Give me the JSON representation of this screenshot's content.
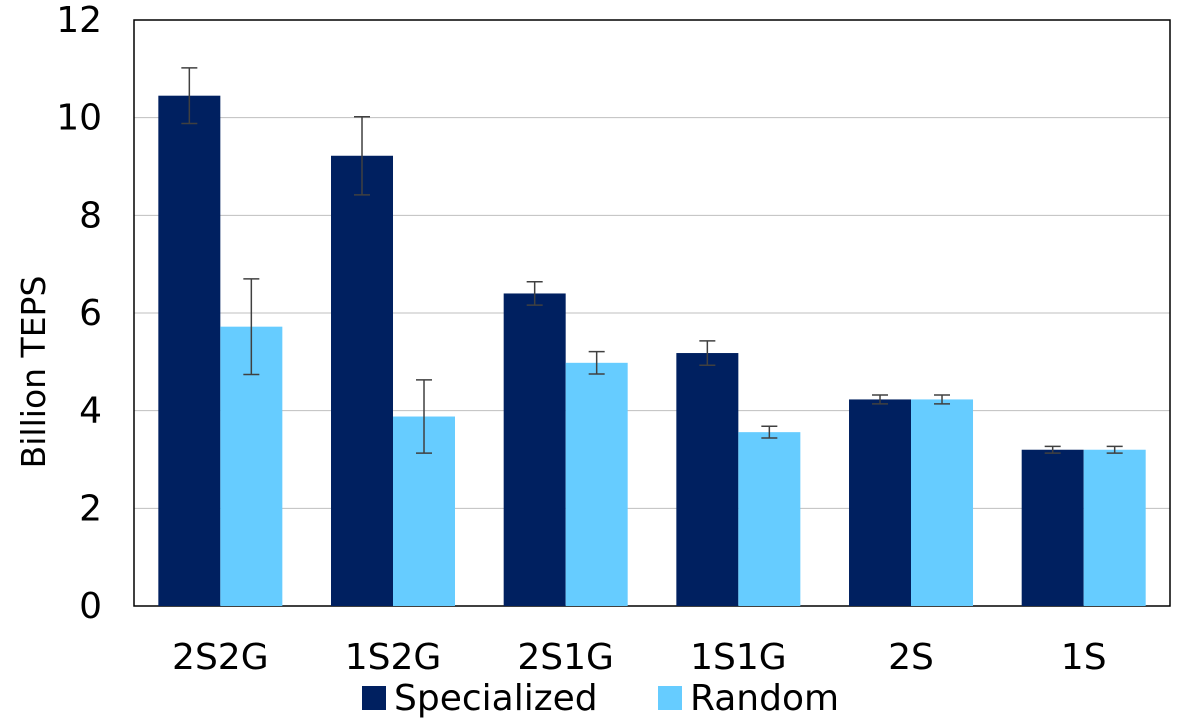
{
  "chart_data": {
    "type": "bar",
    "title": "",
    "xlabel": "",
    "ylabel": "Billion  TEPS",
    "ylim": [
      0,
      12
    ],
    "yticks": [
      0,
      2,
      4,
      6,
      8,
      10,
      12
    ],
    "grid": true,
    "legend_position": "bottom",
    "categories": [
      "2S2G",
      "1S2G",
      "2S1G",
      "1S1G",
      "2S",
      "1S"
    ],
    "series": [
      {
        "name": "Specialized",
        "color": "#002060",
        "values": [
          10.45,
          9.22,
          6.4,
          5.18,
          4.23,
          3.2
        ],
        "error": [
          0.57,
          0.8,
          0.24,
          0.25,
          0.09,
          0.07
        ]
      },
      {
        "name": "Random",
        "color": "#66CCFF",
        "values": [
          5.72,
          3.88,
          4.98,
          3.56,
          4.23,
          3.2
        ],
        "error": [
          0.98,
          0.75,
          0.23,
          0.12,
          0.09,
          0.07
        ]
      }
    ]
  }
}
